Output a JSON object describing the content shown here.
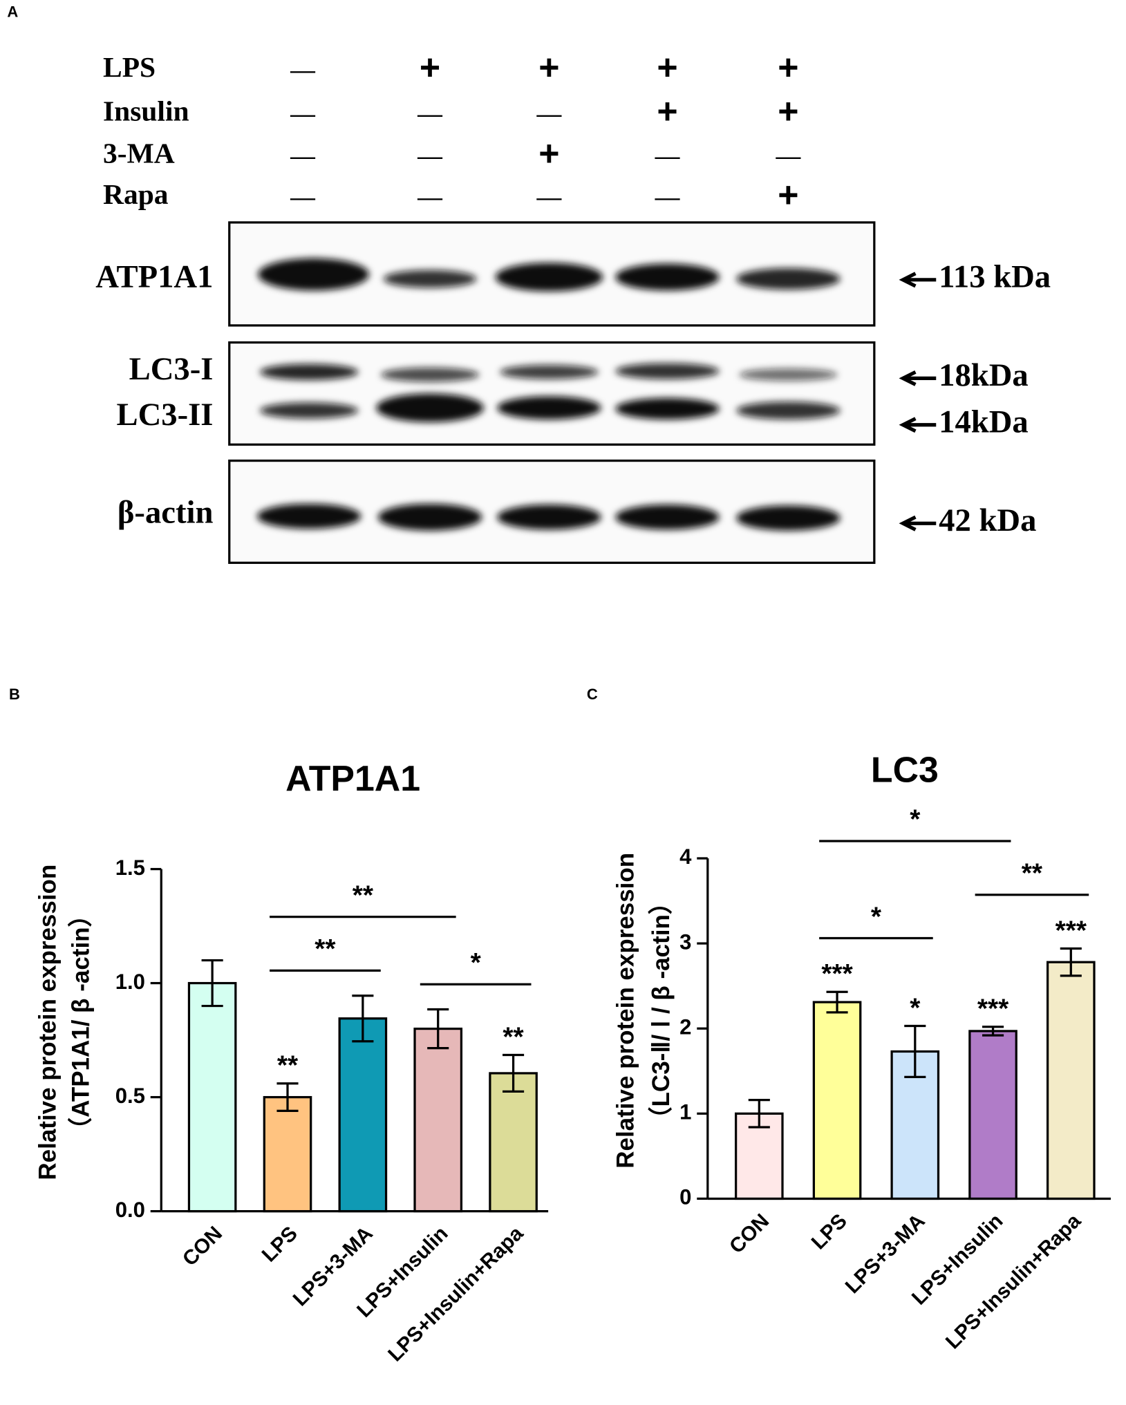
{
  "panel_a": {
    "label": "A",
    "treatments": [
      {
        "name": "LPS",
        "signs": [
          "—",
          "+",
          "+",
          "+",
          "+"
        ]
      },
      {
        "name": "Insulin",
        "signs": [
          "—",
          "—",
          "—",
          "+",
          "+"
        ]
      },
      {
        "name": "3-MA",
        "signs": [
          "—",
          "—",
          "+",
          "—",
          "—"
        ]
      },
      {
        "name": "Rapa",
        "signs": [
          "—",
          "—",
          "—",
          "—",
          "+"
        ]
      }
    ],
    "blots": [
      {
        "labels": [
          "ATP1A1"
        ],
        "sizes": [
          "113 kDa"
        ]
      },
      {
        "labels": [
          "LC3-I",
          "LC3-II"
        ],
        "sizes": [
          "18kDa",
          "14kDa"
        ]
      },
      {
        "labels": [
          "β-actin"
        ],
        "sizes": [
          "42 kDa"
        ]
      }
    ]
  },
  "chart_data": [
    {
      "type": "bar",
      "panel": "B",
      "title": "ATP1A1",
      "ylabel": [
        "Relative protein expression",
        "（ATP1A1/ β -actin）"
      ],
      "categories": [
        "CON",
        "LPS",
        "LPS+3-MA",
        "LPS+Insulin",
        "LPS+Insulin+Rapa"
      ],
      "values": [
        1.0,
        0.5,
        0.845,
        0.8,
        0.605
      ],
      "errors": [
        0.1,
        0.06,
        0.1,
        0.085,
        0.08
      ],
      "colors": [
        "#d4fff1",
        "#ffc380",
        "#0f9ab4",
        "#e6b8b8",
        "#dcdc98"
      ],
      "value_annotations": [
        null,
        "**",
        null,
        null,
        "**"
      ],
      "brackets": [
        {
          "between": [
            1,
            2
          ],
          "label": "**"
        },
        {
          "between": [
            3,
            4
          ],
          "label": "*"
        },
        {
          "between": [
            1,
            3
          ],
          "label": "**"
        }
      ],
      "ylim": [
        0,
        1.5
      ],
      "yticks": [
        {
          "value": 0,
          "label": "0.0"
        },
        0.5,
        {
          "value": 1,
          "label": "1.0"
        },
        1.5
      ]
    },
    {
      "type": "bar",
      "panel": "C",
      "title": "LC3",
      "ylabel": [
        "Relative protein expression",
        "（LC3-Ⅱ/ Ⅰ / β -actin）"
      ],
      "categories": [
        "CON",
        "LPS",
        "LPS+3-MA",
        "LPS+Insulin",
        "LPS+Insulin+Rapa"
      ],
      "values": [
        1.0,
        2.31,
        1.73,
        1.97,
        2.78
      ],
      "errors": [
        0.16,
        0.12,
        0.3,
        0.05,
        0.16
      ],
      "colors": [
        "#ffe8e8",
        "#ffff99",
        "#cce4fa",
        "#b07cc8",
        "#f3ebc8"
      ],
      "value_annotations": [
        null,
        "***",
        "*",
        "***",
        "***"
      ],
      "brackets": [
        {
          "between": [
            1,
            2
          ],
          "label": "*"
        },
        {
          "between": [
            3,
            4
          ],
          "label": "**"
        },
        {
          "between": [
            1,
            3
          ],
          "label": "*"
        }
      ],
      "ylim": [
        0,
        4
      ],
      "yticks": [
        0,
        1,
        2,
        3,
        4
      ]
    }
  ]
}
